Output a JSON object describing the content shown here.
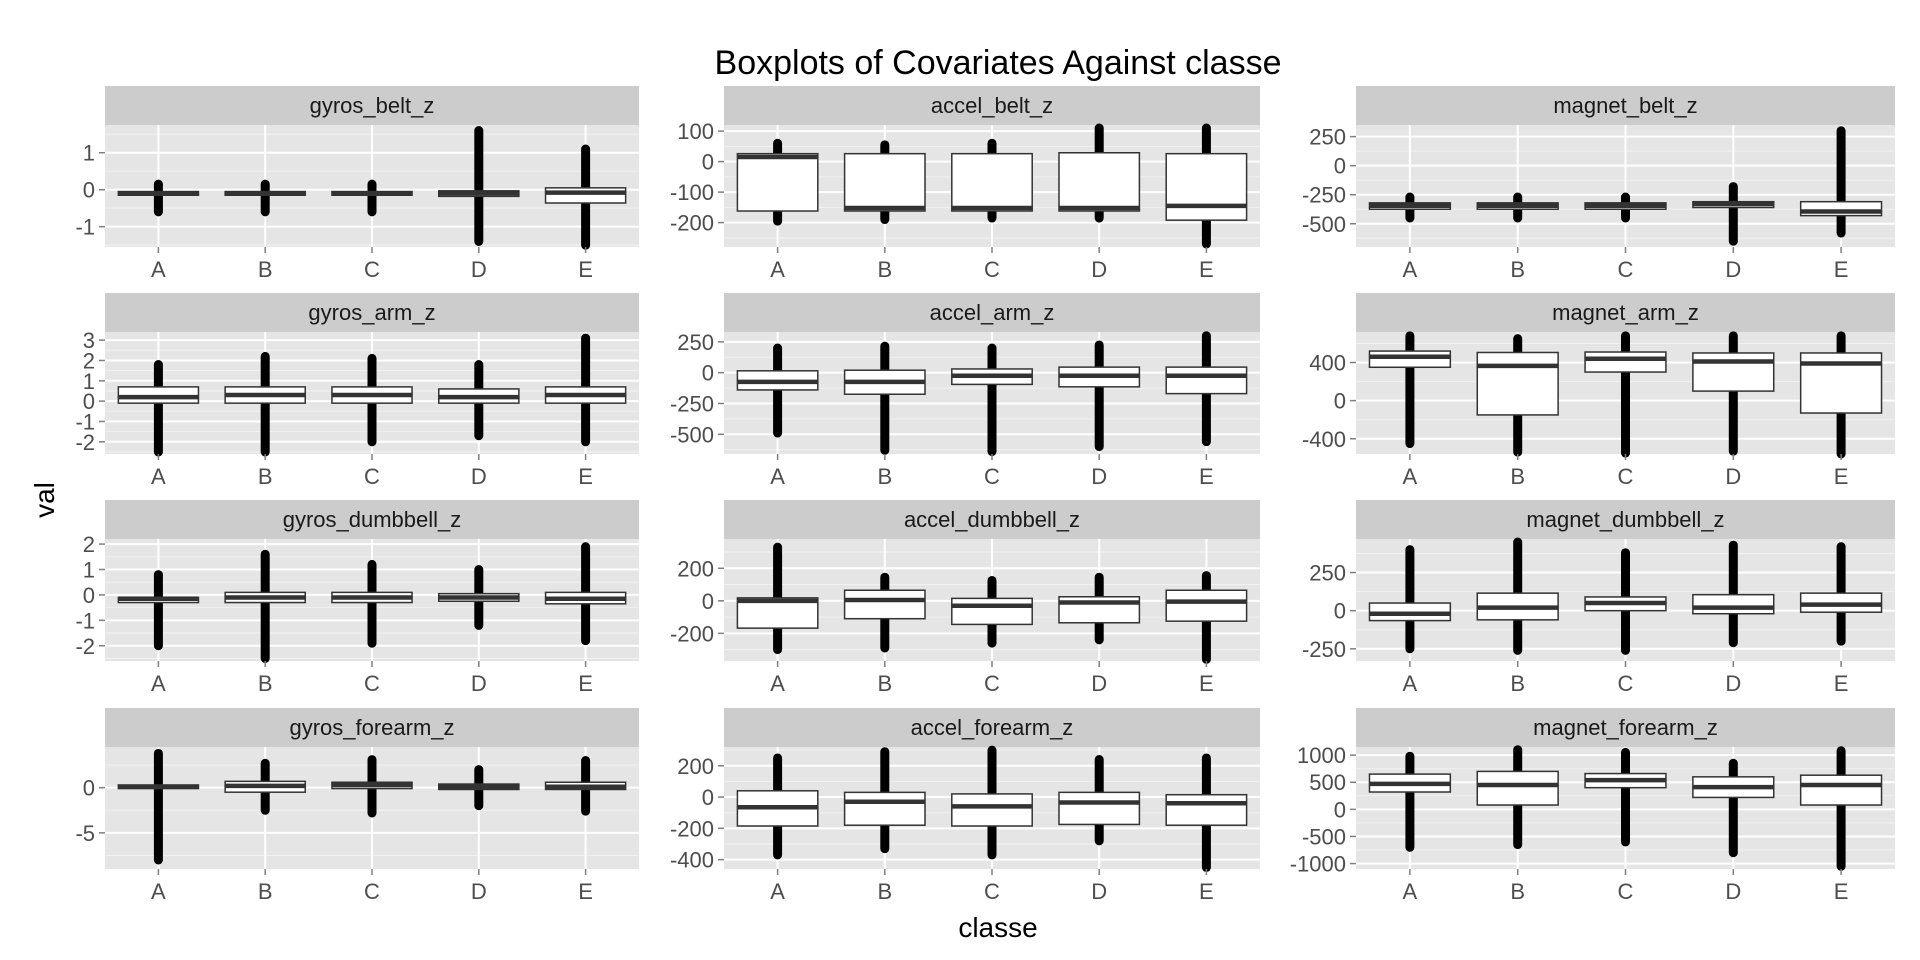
{
  "chart_data": {
    "type": "boxplot",
    "title": "Boxplots of Covariates Against classe",
    "xlabel": "classe",
    "ylabel": "val",
    "categories": [
      "A",
      "B",
      "C",
      "D",
      "E"
    ],
    "panels": [
      {
        "name": "gyros_belt_z",
        "ylim": [
          -1.55,
          1.75
        ],
        "yticks": [
          -1,
          0,
          1
        ],
        "boxes": [
          {
            "q1": -0.15,
            "median": -0.1,
            "q3": -0.05,
            "min": -0.45,
            "max": 0.1,
            "out_min": -0.6,
            "out_max": 0.15
          },
          {
            "q1": -0.15,
            "median": -0.1,
            "q3": -0.05,
            "min": -0.45,
            "max": 0.1,
            "out_min": -0.6,
            "out_max": 0.15
          },
          {
            "q1": -0.15,
            "median": -0.1,
            "q3": -0.05,
            "min": -0.45,
            "max": 0.1,
            "out_min": -0.6,
            "out_max": 0.15
          },
          {
            "q1": -0.18,
            "median": -0.1,
            "q3": -0.03,
            "min": -0.45,
            "max": 0.1,
            "out_min": -1.4,
            "out_max": 1.6
          },
          {
            "q1": -0.36,
            "median": -0.08,
            "q3": 0.05,
            "min": -0.9,
            "max": 0.6,
            "out_min": -1.5,
            "out_max": 1.1
          }
        ]
      },
      {
        "name": "accel_belt_z",
        "ylim": [
          -280,
          120
        ],
        "yticks": [
          -200,
          -100,
          0,
          100
        ],
        "boxes": [
          {
            "q1": -162,
            "median": 15,
            "q3": 26,
            "min": -190,
            "max": 60,
            "out_min": -195,
            "out_max": 60
          },
          {
            "q1": -162,
            "median": -152,
            "q3": 26,
            "min": -190,
            "max": 55,
            "out_min": -190,
            "out_max": 55
          },
          {
            "q1": -162,
            "median": -152,
            "q3": 26,
            "min": -185,
            "max": 55,
            "out_min": -185,
            "out_max": 60
          },
          {
            "q1": -162,
            "median": -152,
            "q3": 29,
            "min": -185,
            "max": 60,
            "out_min": -185,
            "out_max": 110
          },
          {
            "q1": -192,
            "median": -145,
            "q3": 26,
            "min": -250,
            "max": 110,
            "out_min": -270,
            "out_max": 110
          }
        ]
      },
      {
        "name": "magnet_belt_z",
        "ylim": [
          -700,
          350
        ],
        "yticks": [
          -500,
          -250,
          0,
          250
        ],
        "boxes": [
          {
            "q1": -375,
            "median": -345,
            "q3": -320,
            "min": -420,
            "max": -280,
            "out_min": -450,
            "out_max": -270
          },
          {
            "q1": -375,
            "median": -345,
            "q3": -320,
            "min": -420,
            "max": -280,
            "out_min": -450,
            "out_max": -270
          },
          {
            "q1": -375,
            "median": -345,
            "q3": -320,
            "min": -420,
            "max": -280,
            "out_min": -450,
            "out_max": -270
          },
          {
            "q1": -360,
            "median": -330,
            "q3": -310,
            "min": -420,
            "max": -270,
            "out_min": -650,
            "out_max": -180
          },
          {
            "q1": -430,
            "median": -395,
            "q3": -310,
            "min": -520,
            "max": -200,
            "out_min": -580,
            "out_max": 300
          }
        ]
      },
      {
        "name": "gyros_arm_z",
        "ylim": [
          -2.6,
          3.4
        ],
        "yticks": [
          -2,
          -1,
          0,
          1,
          2,
          3
        ],
        "boxes": [
          {
            "q1": -0.1,
            "median": 0.2,
            "q3": 0.7,
            "min": -1.2,
            "max": 1.6,
            "out_min": -2.5,
            "out_max": 1.8
          },
          {
            "q1": -0.1,
            "median": 0.3,
            "q3": 0.7,
            "min": -1.2,
            "max": 1.8,
            "out_min": -2.5,
            "out_max": 2.2
          },
          {
            "q1": -0.1,
            "median": 0.3,
            "q3": 0.7,
            "min": -1.2,
            "max": 1.8,
            "out_min": -2.0,
            "out_max": 2.1
          },
          {
            "q1": -0.1,
            "median": 0.2,
            "q3": 0.6,
            "min": -1.1,
            "max": 1.5,
            "out_min": -1.7,
            "out_max": 1.8
          },
          {
            "q1": -0.1,
            "median": 0.3,
            "q3": 0.7,
            "min": -1.2,
            "max": 1.8,
            "out_min": -2.0,
            "out_max": 3.1
          }
        ]
      },
      {
        "name": "accel_arm_z",
        "ylim": [
          -660,
          330
        ],
        "yticks": [
          -500,
          -250,
          0,
          250
        ],
        "boxes": [
          {
            "q1": -140,
            "median": -75,
            "q3": 15,
            "min": -380,
            "max": 200,
            "out_min": -490,
            "out_max": 200
          },
          {
            "q1": -175,
            "median": -75,
            "q3": 20,
            "min": -450,
            "max": 200,
            "out_min": -630,
            "out_max": 215
          },
          {
            "q1": -95,
            "median": -25,
            "q3": 30,
            "min": -290,
            "max": 200,
            "out_min": -640,
            "out_max": 200
          },
          {
            "q1": -115,
            "median": -25,
            "q3": 45,
            "min": -350,
            "max": 220,
            "out_min": -600,
            "out_max": 225
          },
          {
            "q1": -170,
            "median": -25,
            "q3": 45,
            "min": -440,
            "max": 280,
            "out_min": -560,
            "out_max": 300
          }
        ]
      },
      {
        "name": "magnet_arm_z",
        "ylim": [
          -560,
          720
        ],
        "yticks": [
          -400,
          0,
          400
        ],
        "boxes": [
          {
            "q1": 350,
            "median": 460,
            "q3": 520,
            "min": 100,
            "max": 640,
            "out_min": -450,
            "out_max": 680
          },
          {
            "q1": -150,
            "median": 365,
            "q3": 505,
            "min": -530,
            "max": 650,
            "out_min": -540,
            "out_max": 650
          },
          {
            "q1": 300,
            "median": 440,
            "q3": 510,
            "min": -100,
            "max": 670,
            "out_min": -550,
            "out_max": 680
          },
          {
            "q1": 100,
            "median": 410,
            "q3": 500,
            "min": -380,
            "max": 670,
            "out_min": -530,
            "out_max": 680
          },
          {
            "q1": -130,
            "median": 390,
            "q3": 500,
            "min": -520,
            "max": 680,
            "out_min": -560,
            "out_max": 680
          }
        ]
      },
      {
        "name": "gyros_dumbbell_z",
        "ylim": [
          -2.6,
          2.2
        ],
        "yticks": [
          -2,
          -1,
          0,
          1,
          2
        ],
        "boxes": [
          {
            "q1": -0.3,
            "median": -0.15,
            "q3": -0.1,
            "min": -0.5,
            "max": 0.3,
            "out_min": -2.0,
            "out_max": 0.8
          },
          {
            "q1": -0.3,
            "median": -0.1,
            "q3": 0.1,
            "min": -0.6,
            "max": 0.5,
            "out_min": -2.5,
            "out_max": 1.6
          },
          {
            "q1": -0.3,
            "median": -0.1,
            "q3": 0.1,
            "min": -0.6,
            "max": 0.5,
            "out_min": -1.9,
            "out_max": 1.2
          },
          {
            "q1": -0.25,
            "median": -0.1,
            "q3": 0.05,
            "min": -0.6,
            "max": 0.5,
            "out_min": -1.2,
            "out_max": 1.0
          },
          {
            "q1": -0.35,
            "median": -0.15,
            "q3": 0.1,
            "min": -0.7,
            "max": 0.6,
            "out_min": -1.8,
            "out_max": 1.9
          }
        ]
      },
      {
        "name": "accel_dumbbell_z",
        "ylim": [
          -370,
          380
        ],
        "yticks": [
          -200,
          0,
          200
        ],
        "boxes": [
          {
            "q1": -168,
            "median": 0,
            "q3": 18,
            "min": -300,
            "max": 110,
            "out_min": -300,
            "out_max": 330
          },
          {
            "q1": -110,
            "median": 5,
            "q3": 65,
            "min": -280,
            "max": 140,
            "out_min": -290,
            "out_max": 145
          },
          {
            "q1": -145,
            "median": -30,
            "q3": 15,
            "min": -250,
            "max": 120,
            "out_min": -260,
            "out_max": 125
          },
          {
            "q1": -135,
            "median": -10,
            "q3": 25,
            "min": -240,
            "max": 140,
            "out_min": -240,
            "out_max": 145
          },
          {
            "q1": -125,
            "median": -5,
            "q3": 65,
            "min": -340,
            "max": 150,
            "out_min": -360,
            "out_max": 155
          }
        ]
      },
      {
        "name": "magnet_dumbbell_z",
        "ylim": [
          -330,
          470
        ],
        "yticks": [
          -250,
          0,
          250
        ],
        "boxes": [
          {
            "q1": -65,
            "median": -20,
            "q3": 50,
            "min": -240,
            "max": 200,
            "out_min": -250,
            "out_max": 400
          },
          {
            "q1": -60,
            "median": 20,
            "q3": 115,
            "min": -250,
            "max": 420,
            "out_min": -260,
            "out_max": 450
          },
          {
            "q1": 0,
            "median": 50,
            "q3": 90,
            "min": -150,
            "max": 230,
            "out_min": -260,
            "out_max": 380
          },
          {
            "q1": -20,
            "median": 20,
            "q3": 105,
            "min": -200,
            "max": 300,
            "out_min": -210,
            "out_max": 430
          },
          {
            "q1": -10,
            "median": 40,
            "q3": 115,
            "min": -200,
            "max": 280,
            "out_min": -200,
            "out_max": 420
          }
        ]
      },
      {
        "name": "gyros_forearm_z",
        "ylim": [
          -9,
          4.5
        ],
        "yticks": [
          -5,
          0
        ],
        "boxes": [
          {
            "q1": -0.1,
            "median": 0.1,
            "q3": 0.3,
            "min": -0.6,
            "max": 0.8,
            "out_min": -8.0,
            "out_max": 3.8
          },
          {
            "q1": -0.5,
            "median": 0.2,
            "q3": 0.7,
            "min": -2.0,
            "max": 2.0,
            "out_min": -2.5,
            "out_max": 2.7
          },
          {
            "q1": -0.1,
            "median": 0.3,
            "q3": 0.6,
            "min": -1.0,
            "max": 1.0,
            "out_min": -2.8,
            "out_max": 3.1
          },
          {
            "q1": -0.2,
            "median": 0.1,
            "q3": 0.4,
            "min": -1.5,
            "max": 1.5,
            "out_min": -2.0,
            "out_max": 2.0
          },
          {
            "q1": -0.2,
            "median": 0.1,
            "q3": 0.6,
            "min": -1.5,
            "max": 2.0,
            "out_min": -2.6,
            "out_max": 3.0
          }
        ]
      },
      {
        "name": "accel_forearm_z",
        "ylim": [
          -460,
          320
        ],
        "yticks": [
          -400,
          -200,
          0,
          200
        ],
        "boxes": [
          {
            "q1": -185,
            "median": -65,
            "q3": 40,
            "min": -350,
            "max": 240,
            "out_min": -370,
            "out_max": 250
          },
          {
            "q1": -180,
            "median": -30,
            "q3": 30,
            "min": -320,
            "max": 280,
            "out_min": -330,
            "out_max": 290
          },
          {
            "q1": -185,
            "median": -60,
            "q3": 20,
            "min": -350,
            "max": 280,
            "out_min": -370,
            "out_max": 300
          },
          {
            "q1": -175,
            "median": -35,
            "q3": 30,
            "min": -270,
            "max": 220,
            "out_min": -280,
            "out_max": 240
          },
          {
            "q1": -180,
            "median": -40,
            "q3": 15,
            "min": -350,
            "max": 240,
            "out_min": -450,
            "out_max": 250
          }
        ]
      },
      {
        "name": "magnet_forearm_z",
        "ylim": [
          -1100,
          1150
        ],
        "yticks": [
          -1000,
          -500,
          0,
          500,
          1000
        ],
        "boxes": [
          {
            "q1": 320,
            "median": 470,
            "q3": 650,
            "min": -200,
            "max": 900,
            "out_min": -700,
            "out_max": 980
          },
          {
            "q1": 80,
            "median": 450,
            "q3": 700,
            "min": -600,
            "max": 1050,
            "out_min": -650,
            "out_max": 1100
          },
          {
            "q1": 400,
            "median": 540,
            "q3": 660,
            "min": -100,
            "max": 900,
            "out_min": -600,
            "out_max": 1050
          },
          {
            "q1": 220,
            "median": 410,
            "q3": 600,
            "min": -300,
            "max": 850,
            "out_min": -800,
            "out_max": 850
          },
          {
            "q1": 80,
            "median": 450,
            "q3": 630,
            "min": -600,
            "max": 1000,
            "out_min": -1050,
            "out_max": 1080
          }
        ]
      }
    ]
  }
}
